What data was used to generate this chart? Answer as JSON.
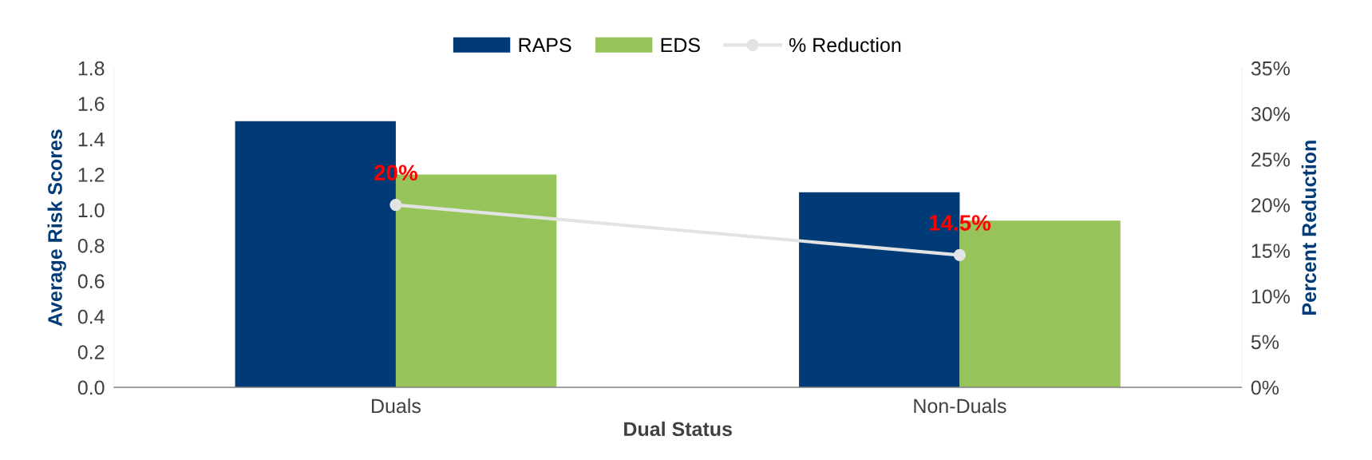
{
  "chart_data": {
    "type": "bar",
    "categories": [
      "Duals",
      "Non-Duals"
    ],
    "xlabel": "Dual Status",
    "ylabel": "Average Risk Scores",
    "y2label": "Percent Reduction",
    "series": [
      {
        "name": "RAPS",
        "color": "#003b77",
        "values": [
          1.5,
          1.1
        ]
      },
      {
        "name": "EDS",
        "color": "#96c45a",
        "values": [
          1.2,
          0.94
        ]
      },
      {
        "name": "% Reduction",
        "type": "line",
        "axis": "y2",
        "color": "#e3e3e3",
        "values": [
          20,
          14.5
        ],
        "value_labels": [
          "20%",
          "14.5%"
        ]
      }
    ],
    "ylim": [
      0,
      1.8
    ],
    "yticks": [
      {
        "value": 0,
        "label": "0.0"
      },
      {
        "value": 0.2,
        "label": "0.2"
      },
      {
        "value": 0.4,
        "label": "0.4"
      },
      {
        "value": 0.6,
        "label": "0.6"
      },
      {
        "value": 0.8,
        "label": "0.8"
      },
      {
        "value": 1.0,
        "label": "1.0"
      },
      {
        "value": 1.2,
        "label": "1.2"
      },
      {
        "value": 1.4,
        "label": "1.4"
      },
      {
        "value": 1.6,
        "label": "1.6"
      },
      {
        "value": 1.8,
        "label": "1.8"
      }
    ],
    "y2lim": [
      0,
      35
    ],
    "y2ticks": [
      {
        "value": 0,
        "label": "0%"
      },
      {
        "value": 5,
        "label": "5%"
      },
      {
        "value": 10,
        "label": "10%"
      },
      {
        "value": 15,
        "label": "15%"
      },
      {
        "value": 20,
        "label": "20%"
      },
      {
        "value": 25,
        "label": "25%"
      },
      {
        "value": 30,
        "label": "30%"
      },
      {
        "value": 35,
        "label": "35%"
      }
    ],
    "grid": false,
    "legend": "top",
    "marker": "circle"
  }
}
